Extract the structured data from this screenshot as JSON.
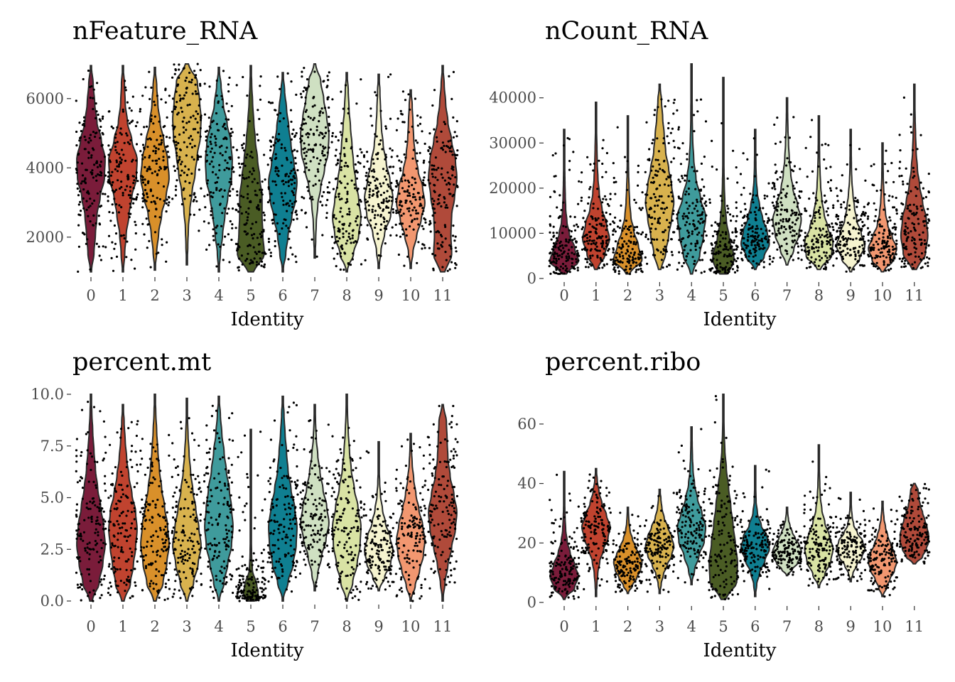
{
  "chart_data": [
    {
      "type": "violin",
      "title": "nFeature_RNA",
      "xlabel": "Identity",
      "ylabel": "",
      "categories": [
        "0",
        "1",
        "2",
        "3",
        "4",
        "5",
        "6",
        "7",
        "8",
        "9",
        "10",
        "11"
      ],
      "ylim": [
        950,
        7000
      ],
      "yticks": [
        2000,
        4000,
        6000
      ],
      "ytick_labels": [
        "2000",
        "4000",
        "6000"
      ],
      "series": [
        {
          "min": 1000,
          "max": 6950,
          "median": 2800,
          "shape": [
            0.1,
            0.2,
            0.3,
            0.4,
            0.62,
            0.9,
            0.95,
            0.7,
            0.4,
            0.25,
            0.15,
            0.08
          ]
        },
        {
          "min": 1000,
          "max": 6950,
          "median": 3500,
          "shape": [
            0.08,
            0.12,
            0.22,
            0.4,
            0.6,
            0.9,
            0.95,
            0.6,
            0.3,
            0.15,
            0.1,
            0.05
          ]
        },
        {
          "min": 1050,
          "max": 6900,
          "median": 3100,
          "shape": [
            0.05,
            0.12,
            0.25,
            0.45,
            0.75,
            0.95,
            0.85,
            0.6,
            0.35,
            0.2,
            0.12,
            0.05
          ]
        },
        {
          "min": 1200,
          "max": 7000,
          "median": 5300,
          "shape": [
            0.04,
            0.06,
            0.1,
            0.2,
            0.35,
            0.55,
            0.7,
            0.9,
            0.95,
            0.85,
            0.7,
            0.4
          ]
        },
        {
          "min": 1000,
          "max": 6900,
          "median": 3900,
          "shape": [
            0.05,
            0.1,
            0.25,
            0.4,
            0.6,
            0.85,
            0.9,
            0.8,
            0.55,
            0.3,
            0.15,
            0.05
          ]
        },
        {
          "min": 1000,
          "max": 6950,
          "median": 2800,
          "shape": [
            0.7,
            0.9,
            0.8,
            0.75,
            0.75,
            0.6,
            0.45,
            0.3,
            0.2,
            0.12,
            0.06,
            0.02
          ]
        },
        {
          "min": 1000,
          "max": 6750,
          "median": 3600,
          "shape": [
            0.05,
            0.2,
            0.35,
            0.6,
            0.85,
            0.95,
            0.75,
            0.55,
            0.4,
            0.25,
            0.12,
            0.05
          ]
        },
        {
          "min": 1400,
          "max": 7000,
          "median": 4600,
          "shape": [
            0.04,
            0.06,
            0.1,
            0.2,
            0.4,
            0.65,
            0.9,
            0.95,
            0.8,
            0.6,
            0.4,
            0.2
          ]
        },
        {
          "min": 1000,
          "max": 6750,
          "median": 2700,
          "shape": [
            0.12,
            0.45,
            0.8,
            0.95,
            0.8,
            0.6,
            0.45,
            0.35,
            0.25,
            0.15,
            0.1,
            0.05
          ]
        },
        {
          "min": 1100,
          "max": 6700,
          "median": 3100,
          "shape": [
            0.06,
            0.15,
            0.4,
            0.8,
            0.95,
            0.75,
            0.5,
            0.3,
            0.18,
            0.12,
            0.08,
            0.04
          ]
        },
        {
          "min": 1100,
          "max": 6250,
          "median": 3400,
          "shape": [
            0.06,
            0.15,
            0.4,
            0.7,
            0.95,
            0.8,
            0.5,
            0.3,
            0.2,
            0.15,
            0.1,
            0.06
          ]
        },
        {
          "min": 1000,
          "max": 6950,
          "median": 3700,
          "shape": [
            0.55,
            0.6,
            0.55,
            0.6,
            0.8,
            0.95,
            0.85,
            0.6,
            0.35,
            0.2,
            0.1,
            0.05
          ]
        }
      ]
    },
    {
      "type": "violin",
      "title": "nCount_RNA",
      "xlabel": "Identity",
      "ylabel": "",
      "categories": [
        "0",
        "1",
        "2",
        "3",
        "4",
        "5",
        "6",
        "7",
        "8",
        "9",
        "10",
        "11"
      ],
      "ylim": [
        0,
        47500
      ],
      "yticks": [
        0,
        10000,
        20000,
        30000,
        40000
      ],
      "ytick_labels": [
        "0",
        "10000",
        "20000",
        "30000",
        "40000"
      ],
      "series": [
        {
          "min": 1000,
          "max": 33000,
          "median": 5500,
          "shape": [
            0.6,
            0.95,
            0.7,
            0.35,
            0.18,
            0.1,
            0.07,
            0.05,
            0.04,
            0.03,
            0.02,
            0.02
          ]
        },
        {
          "min": 2000,
          "max": 39000,
          "median": 10000,
          "shape": [
            0.35,
            0.6,
            0.9,
            0.7,
            0.4,
            0.22,
            0.13,
            0.08,
            0.06,
            0.04,
            0.03,
            0.02
          ]
        },
        {
          "min": 1000,
          "max": 36000,
          "median": 7500,
          "shape": [
            0.45,
            0.95,
            0.7,
            0.4,
            0.2,
            0.12,
            0.08,
            0.05,
            0.04,
            0.03,
            0.02,
            0.02
          ]
        },
        {
          "min": 2000,
          "max": 43000,
          "median": 20000,
          "shape": [
            0.3,
            0.4,
            0.6,
            0.8,
            0.95,
            0.8,
            0.6,
            0.4,
            0.3,
            0.2,
            0.12,
            0.06
          ]
        },
        {
          "min": 1000,
          "max": 47500,
          "median": 12000,
          "shape": [
            0.25,
            0.55,
            0.8,
            0.95,
            0.6,
            0.3,
            0.15,
            0.08,
            0.05,
            0.04,
            0.03,
            0.02
          ]
        },
        {
          "min": 1000,
          "max": 44500,
          "median": 5000,
          "shape": [
            0.95,
            0.7,
            0.4,
            0.2,
            0.1,
            0.06,
            0.04,
            0.03,
            0.02,
            0.02,
            0.01,
            0.01
          ]
        },
        {
          "min": 2000,
          "max": 33000,
          "median": 10500,
          "shape": [
            0.2,
            0.6,
            0.95,
            0.8,
            0.5,
            0.3,
            0.15,
            0.08,
            0.05,
            0.04,
            0.03,
            0.02
          ]
        },
        {
          "min": 3000,
          "max": 40000,
          "median": 15000,
          "shape": [
            0.2,
            0.45,
            0.8,
            0.95,
            0.7,
            0.4,
            0.25,
            0.15,
            0.1,
            0.06,
            0.04,
            0.02
          ]
        },
        {
          "min": 2000,
          "max": 36000,
          "median": 8000,
          "shape": [
            0.4,
            0.85,
            0.95,
            0.6,
            0.35,
            0.2,
            0.12,
            0.08,
            0.05,
            0.04,
            0.03,
            0.02
          ]
        },
        {
          "min": 1500,
          "max": 33000,
          "median": 9000,
          "shape": [
            0.2,
            0.6,
            0.95,
            0.7,
            0.4,
            0.25,
            0.15,
            0.08,
            0.05,
            0.04,
            0.03,
            0.02
          ]
        },
        {
          "min": 1500,
          "max": 30000,
          "median": 9000,
          "shape": [
            0.3,
            0.7,
            0.95,
            0.65,
            0.35,
            0.2,
            0.12,
            0.08,
            0.05,
            0.04,
            0.03,
            0.02
          ]
        },
        {
          "min": 2000,
          "max": 43000,
          "median": 13000,
          "shape": [
            0.55,
            0.75,
            0.9,
            0.8,
            0.55,
            0.35,
            0.2,
            0.12,
            0.08,
            0.05,
            0.03,
            0.02
          ]
        }
      ]
    },
    {
      "type": "violin",
      "title": "percent.mt",
      "xlabel": "Identity",
      "ylabel": "",
      "categories": [
        "0",
        "1",
        "2",
        "3",
        "4",
        "5",
        "6",
        "7",
        "8",
        "9",
        "10",
        "11"
      ],
      "ylim": [
        0,
        10
      ],
      "yticks": [
        0,
        2.5,
        5,
        7.5,
        10
      ],
      "ytick_labels": [
        "0.0",
        "2.5",
        "5.0",
        "7.5",
        "10.0"
      ],
      "series": [
        {
          "min": 0.0,
          "max": 10.0,
          "median": 3.5,
          "shape": [
            0.3,
            0.55,
            0.8,
            0.95,
            0.85,
            0.65,
            0.45,
            0.3,
            0.2,
            0.12,
            0.06,
            0.03
          ]
        },
        {
          "min": 0.0,
          "max": 9.5,
          "median": 3.8,
          "shape": [
            0.3,
            0.5,
            0.7,
            0.85,
            0.95,
            0.85,
            0.6,
            0.4,
            0.25,
            0.15,
            0.08,
            0.04
          ]
        },
        {
          "min": 0.0,
          "max": 10.0,
          "median": 3.5,
          "shape": [
            0.3,
            0.55,
            0.8,
            0.95,
            0.85,
            0.65,
            0.45,
            0.3,
            0.2,
            0.12,
            0.06,
            0.03
          ]
        },
        {
          "min": 0.0,
          "max": 9.8,
          "median": 3.5,
          "shape": [
            0.2,
            0.45,
            0.75,
            0.95,
            0.8,
            0.6,
            0.4,
            0.25,
            0.15,
            0.08,
            0.04,
            0.02
          ]
        },
        {
          "min": 0.0,
          "max": 9.9,
          "median": 3.9,
          "shape": [
            0.12,
            0.35,
            0.6,
            0.85,
            0.95,
            0.85,
            0.7,
            0.5,
            0.35,
            0.2,
            0.1,
            0.04
          ]
        },
        {
          "min": 0.0,
          "max": 8.3,
          "median": 0.4,
          "shape": [
            0.95,
            0.4,
            0.1,
            0.05,
            0.03,
            0.02,
            0.02,
            0.01,
            0.01,
            0.01,
            0.01,
            0.01
          ]
        },
        {
          "min": 0.0,
          "max": 9.9,
          "median": 4.0,
          "shape": [
            0.08,
            0.35,
            0.7,
            0.9,
            0.95,
            0.8,
            0.55,
            0.35,
            0.25,
            0.15,
            0.08,
            0.04
          ]
        },
        {
          "min": 0.5,
          "max": 9.5,
          "median": 3.9,
          "shape": [
            0.05,
            0.2,
            0.45,
            0.75,
            0.95,
            0.8,
            0.55,
            0.35,
            0.2,
            0.1,
            0.05,
            0.02
          ]
        },
        {
          "min": 0.0,
          "max": 10.0,
          "median": 3.3,
          "shape": [
            0.15,
            0.4,
            0.7,
            0.9,
            0.95,
            0.75,
            0.5,
            0.3,
            0.18,
            0.1,
            0.05,
            0.03
          ]
        },
        {
          "min": 0.5,
          "max": 7.7,
          "median": 3.4,
          "shape": [
            0.12,
            0.4,
            0.8,
            0.95,
            0.75,
            0.45,
            0.25,
            0.12,
            0.06,
            0.03,
            0.02,
            0.01
          ]
        },
        {
          "min": 0.0,
          "max": 8.1,
          "median": 3.6,
          "shape": [
            0.08,
            0.3,
            0.6,
            0.85,
            0.95,
            0.8,
            0.55,
            0.35,
            0.2,
            0.1,
            0.05,
            0.02
          ]
        },
        {
          "min": 0.0,
          "max": 9.5,
          "median": 4.3,
          "shape": [
            0.05,
            0.15,
            0.35,
            0.6,
            0.85,
            0.95,
            0.75,
            0.5,
            0.35,
            0.3,
            0.25,
            0.15
          ]
        }
      ]
    },
    {
      "type": "violin",
      "title": "percent.ribo",
      "xlabel": "Identity",
      "ylabel": "",
      "categories": [
        "0",
        "1",
        "2",
        "3",
        "4",
        "5",
        "6",
        "7",
        "8",
        "9",
        "10",
        "11"
      ],
      "ylim": [
        0,
        70
      ],
      "yticks": [
        0,
        20,
        40,
        60
      ],
      "ytick_labels": [
        "0",
        "20",
        "40",
        "60"
      ],
      "series": [
        {
          "min": 1,
          "max": 44,
          "median": 11,
          "shape": [
            0.2,
            0.7,
            0.95,
            0.7,
            0.4,
            0.2,
            0.1,
            0.06,
            0.04,
            0.03,
            0.02,
            0.02
          ]
        },
        {
          "min": 2,
          "max": 45,
          "median": 26,
          "shape": [
            0.03,
            0.06,
            0.12,
            0.25,
            0.5,
            0.8,
            0.95,
            0.7,
            0.4,
            0.2,
            0.08,
            0.04
          ]
        },
        {
          "min": 3,
          "max": 32,
          "median": 16,
          "shape": [
            0.1,
            0.3,
            0.6,
            0.85,
            0.95,
            0.75,
            0.5,
            0.3,
            0.15,
            0.08,
            0.05,
            0.03
          ]
        },
        {
          "min": 3,
          "max": 38,
          "median": 21,
          "shape": [
            0.05,
            0.1,
            0.25,
            0.5,
            0.8,
            0.95,
            0.8,
            0.55,
            0.3,
            0.15,
            0.08,
            0.04
          ]
        },
        {
          "min": 6,
          "max": 59,
          "median": 27,
          "shape": [
            0.05,
            0.2,
            0.5,
            0.85,
            0.95,
            0.7,
            0.4,
            0.2,
            0.1,
            0.06,
            0.04,
            0.02
          ]
        },
        {
          "min": 1,
          "max": 70,
          "median": 19,
          "shape": [
            0.6,
            0.9,
            0.95,
            0.8,
            0.65,
            0.5,
            0.35,
            0.2,
            0.1,
            0.05,
            0.03,
            0.02
          ]
        },
        {
          "min": 2,
          "max": 46,
          "median": 21,
          "shape": [
            0.05,
            0.1,
            0.3,
            0.65,
            0.95,
            0.8,
            0.4,
            0.15,
            0.06,
            0.04,
            0.03,
            0.02
          ]
        },
        {
          "min": 9,
          "max": 32,
          "median": 21,
          "shape": [
            0.1,
            0.35,
            0.7,
            0.9,
            0.95,
            0.8,
            0.55,
            0.35,
            0.2,
            0.1,
            0.05,
            0.03
          ]
        },
        {
          "min": 5,
          "max": 53,
          "median": 21,
          "shape": [
            0.1,
            0.4,
            0.8,
            0.95,
            0.7,
            0.4,
            0.2,
            0.1,
            0.06,
            0.04,
            0.03,
            0.02
          ]
        },
        {
          "min": 7,
          "max": 37,
          "median": 20,
          "shape": [
            0.05,
            0.15,
            0.4,
            0.75,
            0.95,
            0.8,
            0.45,
            0.2,
            0.1,
            0.05,
            0.03,
            0.02
          ]
        },
        {
          "min": 2,
          "max": 34,
          "median": 20,
          "shape": [
            0.1,
            0.25,
            0.5,
            0.8,
            0.95,
            0.8,
            0.55,
            0.35,
            0.2,
            0.1,
            0.05,
            0.03
          ]
        },
        {
          "min": 13,
          "max": 40,
          "median": 26,
          "shape": [
            0.3,
            0.55,
            0.8,
            0.95,
            0.95,
            0.85,
            0.7,
            0.55,
            0.4,
            0.3,
            0.25,
            0.2
          ]
        }
      ]
    }
  ],
  "identity_colors": [
    "#7a1c3a",
    "#c0432f",
    "#d9902a",
    "#d8b24e",
    "#3f9b9c",
    "#4a5c24",
    "#0f7f91",
    "#cfe0c2",
    "#d9e3a4",
    "#f6f4d0",
    "#f29770",
    "#b04a3a"
  ]
}
